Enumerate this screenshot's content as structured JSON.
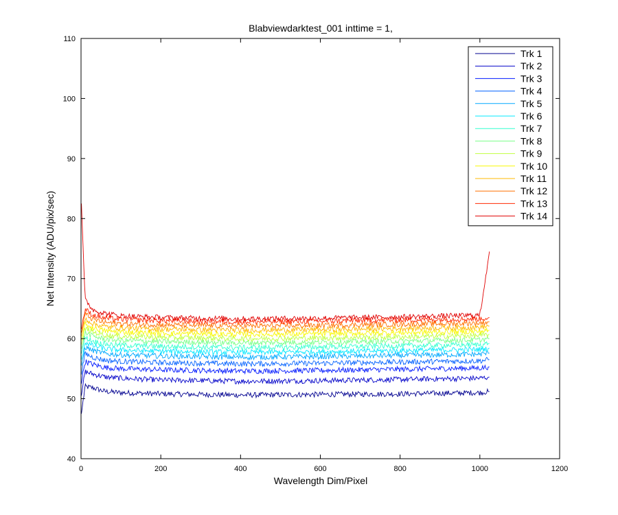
{
  "chart_data": {
    "type": "line",
    "title": "Blabviewdarktest_001 inttime = 1,",
    "xlabel": "Wavelength Dim/Pixel",
    "ylabel": "Net Intensity (ADU/pix/sec)",
    "xlim": [
      0,
      1200
    ],
    "ylim": [
      40,
      110
    ],
    "xticks": [
      0,
      200,
      400,
      600,
      800,
      1000,
      1200
    ],
    "yticks": [
      40,
      50,
      60,
      70,
      80,
      90,
      100,
      110
    ],
    "x_points": [
      1,
      10,
      30,
      60,
      100,
      200,
      400,
      600,
      800,
      1000,
      1024
    ],
    "legend_position": "top-right",
    "grid": false,
    "series": [
      {
        "name": "Trk 1",
        "color": "#00008f",
        "values": [
          47.5,
          52.0,
          51.8,
          51.2,
          51.0,
          50.8,
          50.6,
          50.7,
          50.8,
          51.0,
          51.2
        ]
      },
      {
        "name": "Trk 2",
        "color": "#0000c8",
        "values": [
          50.5,
          54.5,
          54.1,
          53.6,
          53.4,
          53.1,
          52.9,
          53.0,
          53.2,
          53.4,
          53.6
        ]
      },
      {
        "name": "Trk 3",
        "color": "#0018ff",
        "values": [
          52.5,
          56.2,
          55.7,
          55.2,
          55.0,
          54.8,
          54.6,
          54.7,
          54.9,
          55.1,
          55.3
        ]
      },
      {
        "name": "Trk 4",
        "color": "#0060ff",
        "values": [
          54.0,
          57.5,
          56.9,
          56.4,
          56.2,
          56.0,
          55.8,
          55.9,
          56.1,
          56.3,
          56.5
        ]
      },
      {
        "name": "Trk 5",
        "color": "#00a8ff",
        "values": [
          55.5,
          58.6,
          58.0,
          57.5,
          57.3,
          57.1,
          56.9,
          57.0,
          57.2,
          57.4,
          57.6
        ]
      },
      {
        "name": "Trk 6",
        "color": "#00e8ff",
        "values": [
          56.5,
          59.4,
          58.8,
          58.3,
          58.1,
          57.9,
          57.7,
          57.8,
          58.0,
          58.2,
          58.4
        ]
      },
      {
        "name": "Trk 7",
        "color": "#30ffcf",
        "values": [
          57.5,
          60.2,
          59.6,
          59.1,
          58.9,
          58.7,
          58.5,
          58.6,
          58.8,
          59.0,
          59.2
        ]
      },
      {
        "name": "Trk 8",
        "color": "#78ff87",
        "values": [
          58.3,
          61.0,
          60.4,
          59.9,
          59.7,
          59.5,
          59.3,
          59.4,
          59.6,
          59.8,
          60.0
        ]
      },
      {
        "name": "Trk 9",
        "color": "#c0ff3f",
        "values": [
          59.0,
          61.7,
          61.1,
          60.6,
          60.4,
          60.2,
          60.0,
          60.1,
          60.3,
          60.5,
          60.7
        ]
      },
      {
        "name": "Trk 10",
        "color": "#f8f800",
        "values": [
          59.7,
          62.4,
          61.8,
          61.3,
          61.1,
          60.9,
          60.7,
          60.8,
          61.0,
          61.2,
          61.4
        ]
      },
      {
        "name": "Trk 11",
        "color": "#ffb800",
        "values": [
          60.4,
          63.3,
          62.5,
          62.0,
          61.8,
          61.6,
          61.4,
          61.5,
          61.7,
          61.9,
          62.1
        ]
      },
      {
        "name": "Trk 12",
        "color": "#ff7000",
        "values": [
          61.0,
          64.1,
          63.2,
          62.7,
          62.5,
          62.3,
          62.1,
          62.2,
          62.4,
          62.6,
          62.8
        ]
      },
      {
        "name": "Trk 13",
        "color": "#ff2800",
        "values": [
          61.6,
          64.9,
          63.9,
          63.4,
          63.2,
          63.0,
          62.8,
          62.9,
          63.1,
          63.3,
          63.5
        ]
      },
      {
        "name": "Trk 14",
        "color": "#e00000",
        "values": [
          82.5,
          66.5,
          64.8,
          64.2,
          63.8,
          63.5,
          63.3,
          63.4,
          63.6,
          63.9,
          74.5
        ]
      }
    ]
  }
}
